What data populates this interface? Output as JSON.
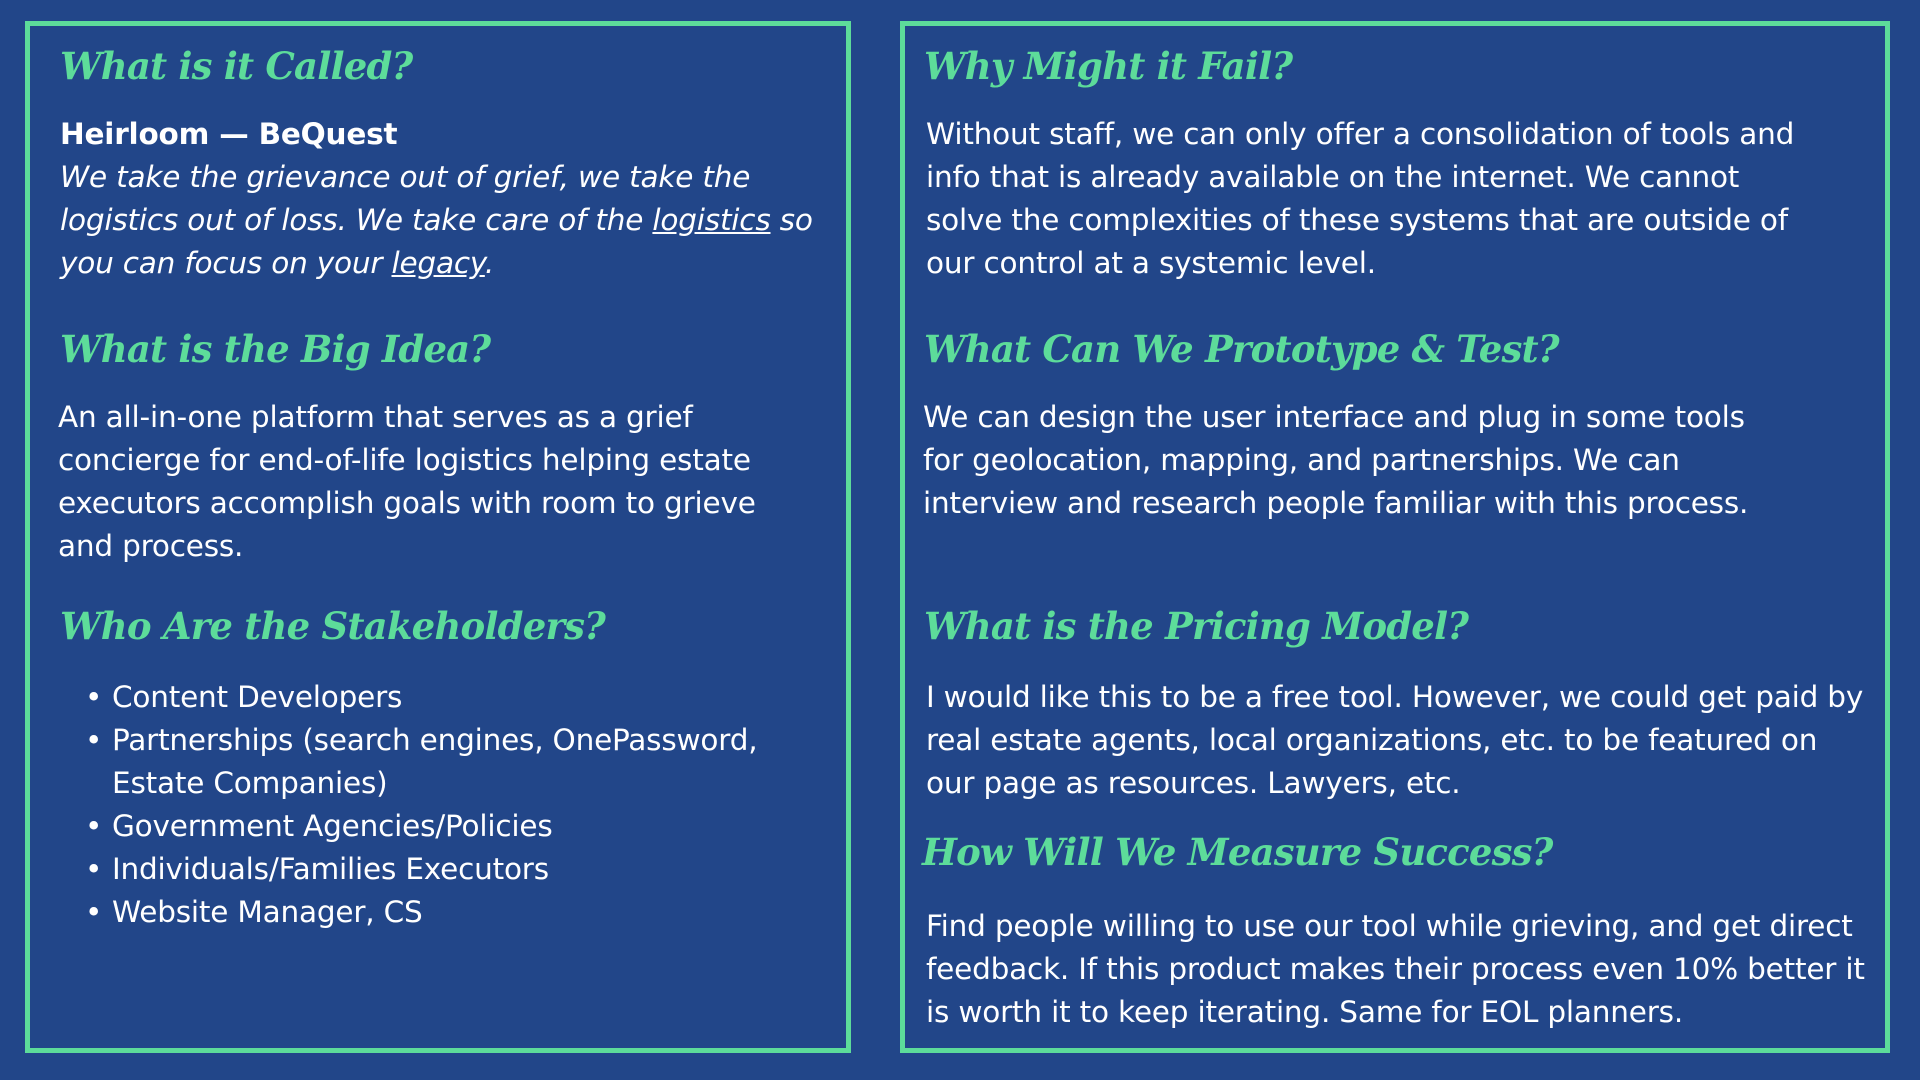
{
  "colors": {
    "background": "#224689",
    "accent": "#5ddc9a",
    "text": "#ffffff"
  },
  "left": {
    "called": {
      "heading": "What is it Called?",
      "name": "Heirloom — BeQuest",
      "tagline_part1": "We take the grievance out of grief, we take the logistics out of loss. We take care of the ",
      "tagline_link1": "logistics",
      "tagline_part2": " so you can focus on your ",
      "tagline_link2": "legacy",
      "tagline_end": "."
    },
    "big_idea": {
      "heading": "What is the Big Idea?",
      "text": "An all-in-one platform that serves as a grief concierge for end-of-life logistics helping estate executors accomplish goals with room to grieve and process."
    },
    "stakeholders": {
      "heading": "Who Are the Stakeholders?",
      "items": [
        "Content Developers",
        "Partnerships (search engines, OnePassword, Estate Companies)",
        "Government Agencies/Policies",
        "Individuals/Families Executors",
        "Website Manager, CS"
      ]
    }
  },
  "right": {
    "fail": {
      "heading": "Why Might it Fail?",
      "text": "Without staff, we can only offer a consolidation of tools and info that is already available on the internet. We cannot solve the complexities of these systems that are outside of our control at a systemic level."
    },
    "prototype": {
      "heading": "What Can We Prototype & Test?",
      "text": "We can design the user interface and plug in some tools for geolocation, mapping, and partnerships. We can interview and research people familiar with this process."
    },
    "pricing": {
      "heading": "What is the Pricing Model?",
      "text": "I would like this to be a free tool. However, we could get paid by real estate agents, local organizations, etc. to be featured on our page as resources. Lawyers, etc."
    },
    "success": {
      "heading": "How Will We Measure Success?",
      "text": "Find people willing to use our tool while grieving, and get direct feedback. If this product makes their process even 10% better it is worth it to keep iterating. Same for EOL planners."
    }
  }
}
